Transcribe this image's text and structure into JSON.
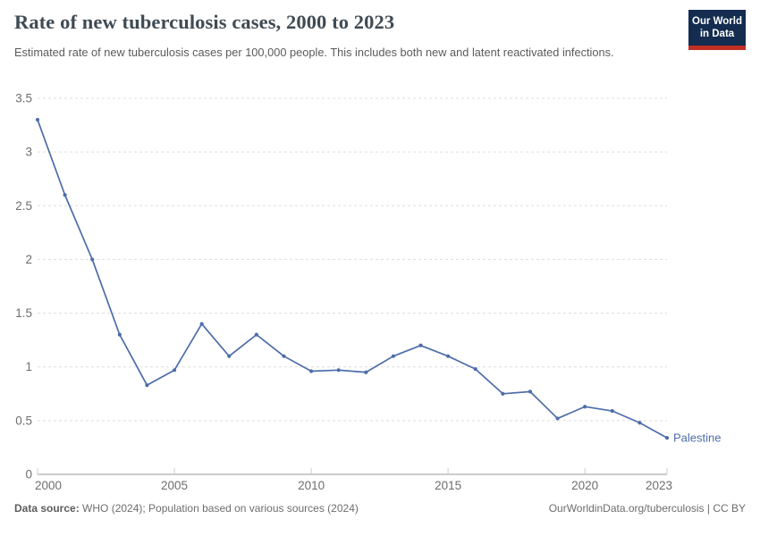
{
  "header": {
    "logo": {
      "line1": "Our World",
      "line2": "in Data"
    }
  },
  "chart_data": {
    "type": "line",
    "title": "Rate of new tuberculosis cases, 2000 to 2023",
    "subtitle": "Estimated rate of new tuberculosis cases per 100,000 people. This includes both new and latent reactivated infections.",
    "xlabel": "",
    "ylabel": "",
    "x": [
      2000,
      2001,
      2002,
      2003,
      2004,
      2005,
      2006,
      2007,
      2008,
      2009,
      2010,
      2011,
      2012,
      2013,
      2014,
      2015,
      2016,
      2017,
      2018,
      2019,
      2020,
      2021,
      2022,
      2023
    ],
    "series": [
      {
        "name": "Palestine",
        "color": "#4d6da9",
        "values": [
          3.3,
          2.6,
          2.0,
          1.3,
          0.83,
          0.97,
          1.4,
          1.1,
          1.3,
          1.1,
          0.96,
          0.97,
          0.95,
          1.1,
          1.2,
          1.1,
          0.98,
          0.75,
          0.77,
          0.52,
          0.63,
          0.59,
          0.48,
          0.34
        ]
      }
    ],
    "xlim": [
      2000,
      2023
    ],
    "ylim": [
      0,
      3.5
    ],
    "xticks": [
      {
        "v": 2000,
        "label": "2000"
      },
      {
        "v": 2005,
        "label": "2005"
      },
      {
        "v": 2010,
        "label": "2010"
      },
      {
        "v": 2015,
        "label": "2015"
      },
      {
        "v": 2020,
        "label": "2020"
      },
      {
        "v": 2023,
        "label": "2023"
      }
    ],
    "yticks": [
      {
        "v": 0,
        "label": "0"
      },
      {
        "v": 0.5,
        "label": "0.5"
      },
      {
        "v": 1,
        "label": "1"
      },
      {
        "v": 1.5,
        "label": "1.5"
      },
      {
        "v": 2,
        "label": "2"
      },
      {
        "v": 2.5,
        "label": "2.5"
      },
      {
        "v": 3,
        "label": "3"
      },
      {
        "v": 3.5,
        "label": "3.5"
      }
    ],
    "grid": "horizontal-dashed",
    "legend_position": "line-end-label"
  },
  "footer": {
    "source_label": "Data source:",
    "source_text": " WHO (2024); Population based on various sources (2024)",
    "credit": "OurWorldinData.org/tuberculosis | CC BY"
  },
  "colors": {
    "line": "#4d6da9",
    "grid": "#dddddd",
    "axis": "#999999",
    "tick": "#cccccc",
    "tick_text": "#6e6e6e",
    "title_text": "#3f4b54",
    "subtitle_text": "#5b5b5b",
    "logo_navy": "#132c4f",
    "logo_red": "#c02f22"
  }
}
